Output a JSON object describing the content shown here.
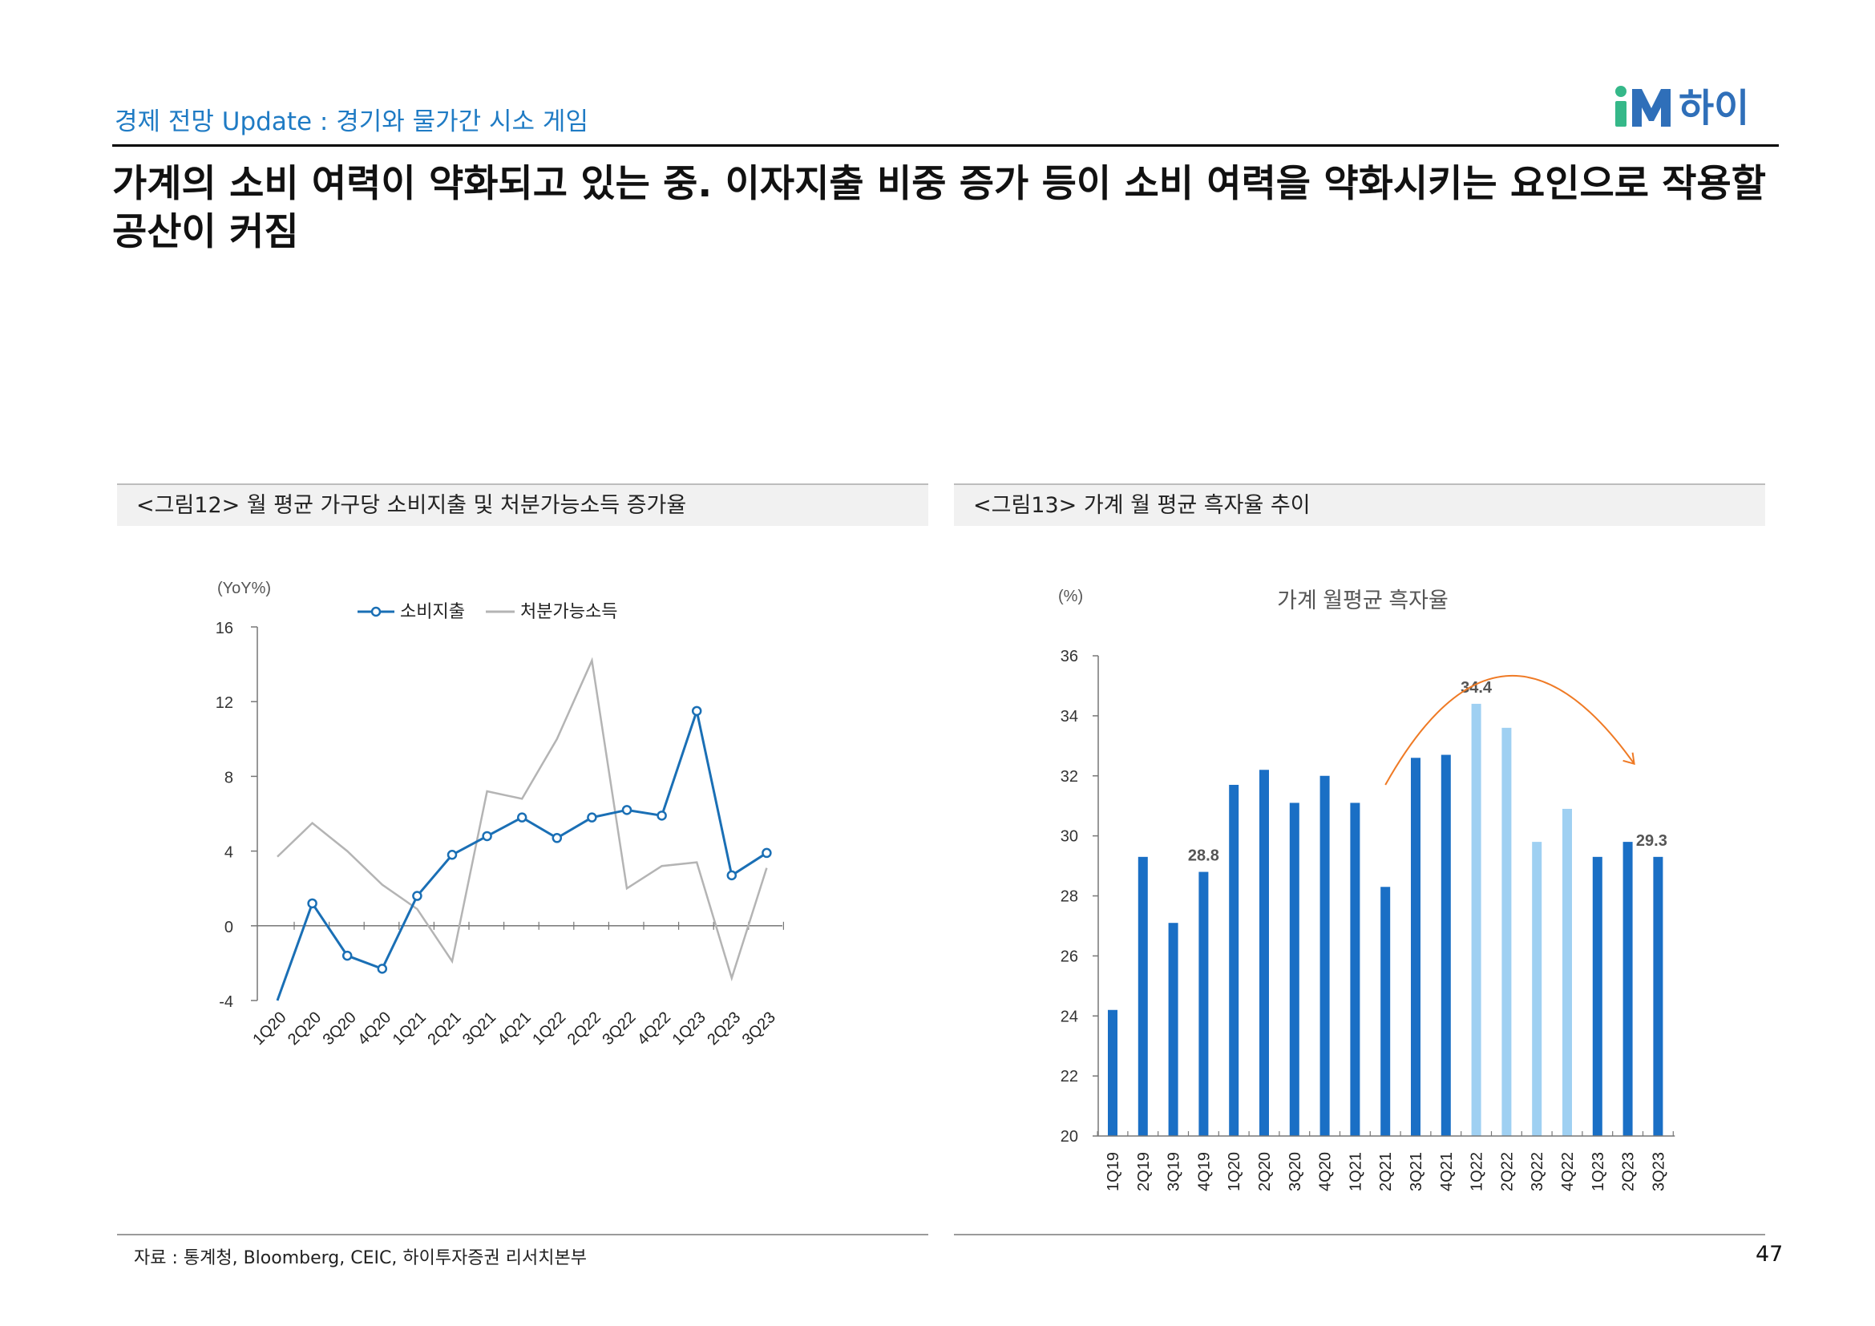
{
  "header": {
    "subtitle": "경제 전망 Update : 경기와 물가간 시소 게임",
    "logo_mark": "iM",
    "logo_text": "하이",
    "headline": "가계의 소비 여력이 약화되고 있는 중. 이자지출 비중 증가 등이 소비 여력을 약화시키는 요인으로 작용할 공산이 커짐"
  },
  "colors": {
    "accent_blue": "#1f7bc4",
    "logo_green": "#35b889",
    "logo_blue": "#2f6fb9",
    "line_blue": "#1a6fb5",
    "line_gray": "#b4b4b4",
    "bar_dark": "#1a6fc5",
    "bar_light": "#9fd0f2",
    "arrow_orange": "#ef7a25"
  },
  "footer": {
    "source": "자료 : 통계청, Bloomberg, CEIC, 하이투자증권 리서치본부",
    "page_number": "47"
  },
  "chart_data": [
    {
      "figure_label": "<그림12> 월 평균 가구당 소비지출 및 처분가능소득 증가율",
      "type": "line",
      "title": "",
      "ylabel": "(YoY%)",
      "xlabel": "",
      "ylim": [
        -4,
        16
      ],
      "yticks": [
        -4,
        0,
        4,
        8,
        12,
        16
      ],
      "grid": false,
      "legend_position": "top",
      "categories": [
        "1Q20",
        "2Q20",
        "3Q20",
        "4Q20",
        "1Q21",
        "2Q21",
        "3Q21",
        "4Q21",
        "1Q22",
        "2Q22",
        "3Q22",
        "4Q22",
        "1Q23",
        "2Q23",
        "3Q23"
      ],
      "series": [
        {
          "name": "소비지출",
          "style": "line-marker",
          "color": "#1a6fb5",
          "values": [
            -4.0,
            1.2,
            -1.6,
            -2.3,
            1.6,
            3.8,
            4.8,
            5.8,
            4.7,
            5.8,
            6.2,
            5.9,
            11.5,
            2.7,
            3.9
          ]
        },
        {
          "name": "처분가능소득",
          "style": "line",
          "color": "#b4b4b4",
          "values": [
            3.7,
            5.5,
            4.0,
            2.2,
            0.9,
            -1.9,
            7.2,
            6.8,
            10.0,
            14.2,
            2.0,
            3.2,
            3.4,
            -2.8,
            3.1
          ]
        }
      ]
    },
    {
      "figure_label": "<그림13> 가계 월 평균 흑자율 추이",
      "type": "bar",
      "title": "가계 월평균 흑자율",
      "ylabel": "(%)",
      "xlabel": "",
      "ylim": [
        20,
        36
      ],
      "yticks": [
        20,
        22,
        24,
        26,
        28,
        30,
        32,
        34,
        36
      ],
      "grid": false,
      "categories": [
        "1Q19",
        "2Q19",
        "3Q19",
        "4Q19",
        "1Q20",
        "2Q20",
        "3Q20",
        "4Q20",
        "1Q21",
        "2Q21",
        "3Q21",
        "4Q21",
        "1Q22",
        "2Q22",
        "3Q22",
        "4Q22",
        "1Q23",
        "2Q23",
        "3Q23"
      ],
      "values": [
        24.2,
        29.3,
        27.1,
        28.8,
        31.7,
        32.2,
        31.1,
        32.0,
        31.1,
        28.3,
        32.6,
        32.7,
        34.4,
        33.6,
        29.8,
        30.9,
        29.3,
        29.8,
        29.3
      ],
      "highlight_light": [
        "1Q22",
        "2Q22",
        "3Q22",
        "4Q22"
      ],
      "data_labels": [
        {
          "category": "4Q19",
          "text": "28.8"
        },
        {
          "category": "1Q22",
          "text": "34.4"
        },
        {
          "category": "3Q23",
          "text": "29.3"
        }
      ],
      "annotation": "arc-arrow from 2Q21 peaking near 1Q22 down to 2Q23"
    }
  ]
}
